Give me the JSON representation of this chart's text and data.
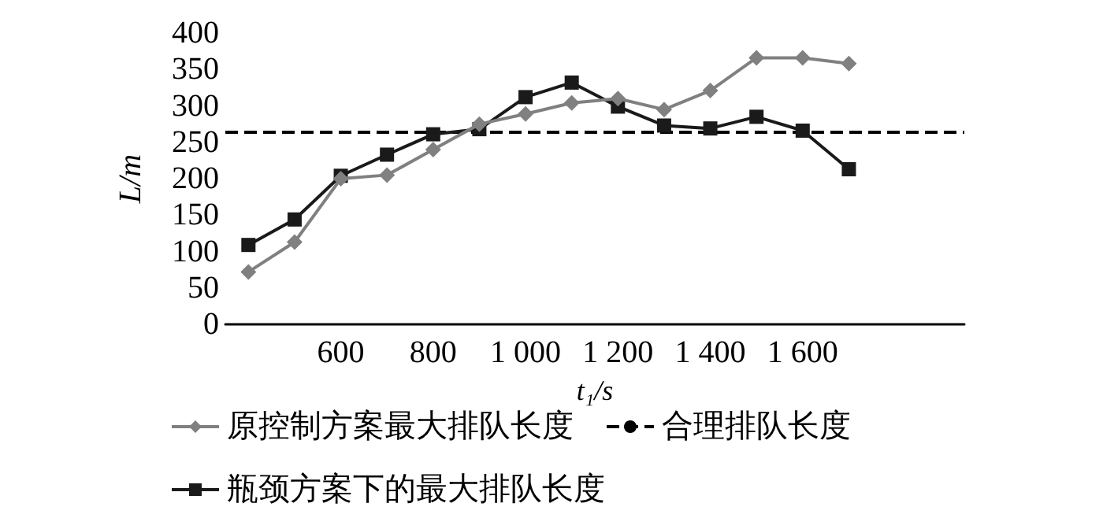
{
  "chart_data": {
    "type": "line",
    "xlabel": "t₁/s",
    "ylabel": "L/m",
    "categories": [
      null,
      null,
      "600",
      null,
      "800",
      null,
      "1 000",
      null,
      "1 200",
      null,
      "1 400",
      null,
      "1 600",
      null,
      null,
      null
    ],
    "series": [
      {
        "name": "原控制方案最大排队长度",
        "color": "#808080",
        "marker": "diamond",
        "values": [
          72,
          113,
          200,
          205,
          240,
          275,
          289,
          304,
          310,
          295,
          321,
          366,
          366,
          358,
          null,
          null
        ]
      },
      {
        "name": "瓶颈方案下的最大排队长度",
        "color": "#1a1a1a",
        "marker": "square",
        "values": [
          109,
          144,
          204,
          233,
          261,
          268,
          312,
          332,
          299,
          273,
          269,
          285,
          266,
          213,
          null,
          null
        ]
      }
    ],
    "ref_lines": [
      {
        "axis": "y",
        "value": 265,
        "label": "合理排队长度",
        "color": "#000000",
        "line_style": "dashed"
      }
    ],
    "ylim": [
      0,
      400
    ],
    "yticks": [
      0,
      50,
      100,
      150,
      200,
      250,
      300,
      350,
      400
    ],
    "grid": false,
    "legend": "bottom",
    "line_style": "solid"
  }
}
